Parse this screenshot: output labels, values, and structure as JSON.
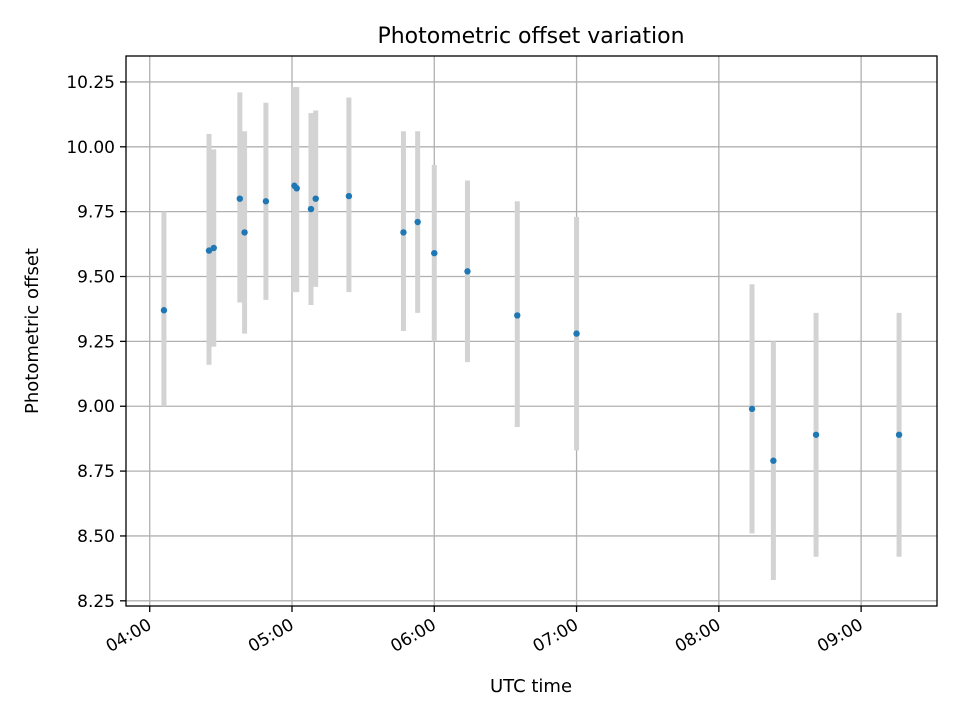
{
  "chart_data": {
    "type": "scatter",
    "title": "Photometric offset variation",
    "xlabel": "UTC time",
    "ylabel": "Photometric offset",
    "x_axis_kind": "time",
    "x_range": [
      "03:50",
      "09:32"
    ],
    "y_range": [
      8.23,
      10.35
    ],
    "grid": true,
    "x_ticks": [
      "04:00",
      "05:00",
      "06:00",
      "07:00",
      "08:00",
      "09:00"
    ],
    "y_ticks": [
      "8.25",
      "8.50",
      "8.75",
      "9.00",
      "9.25",
      "9.50",
      "9.75",
      "10.00",
      "10.25"
    ],
    "colors": {
      "point": "#1f77b4",
      "errorbar": "#d3d3d3",
      "grid": "#b0b0b0"
    },
    "points": [
      {
        "x": "04:06",
        "y": 9.37,
        "low": 9.0,
        "high": 9.75
      },
      {
        "x": "04:25",
        "y": 9.6,
        "low": 9.16,
        "high": 10.05
      },
      {
        "x": "04:27",
        "y": 9.61,
        "low": 9.23,
        "high": 9.99
      },
      {
        "x": "04:38",
        "y": 9.8,
        "low": 9.4,
        "high": 10.21
      },
      {
        "x": "04:40",
        "y": 9.67,
        "low": 9.28,
        "high": 10.06
      },
      {
        "x": "04:49",
        "y": 9.79,
        "low": 9.41,
        "high": 10.17
      },
      {
        "x": "05:01",
        "y": 9.85,
        "low": 9.44,
        "high": 10.23
      },
      {
        "x": "05:02",
        "y": 9.84,
        "low": 9.44,
        "high": 10.23
      },
      {
        "x": "05:08",
        "y": 9.76,
        "low": 9.39,
        "high": 10.13
      },
      {
        "x": "05:10",
        "y": 9.8,
        "low": 9.46,
        "high": 10.14
      },
      {
        "x": "05:24",
        "y": 9.81,
        "low": 9.44,
        "high": 10.19
      },
      {
        "x": "05:47",
        "y": 9.67,
        "low": 9.29,
        "high": 10.06
      },
      {
        "x": "05:53",
        "y": 9.71,
        "low": 9.36,
        "high": 10.06
      },
      {
        "x": "06:00",
        "y": 9.59,
        "low": 9.25,
        "high": 9.93
      },
      {
        "x": "06:14",
        "y": 9.52,
        "low": 9.17,
        "high": 9.87
      },
      {
        "x": "06:35",
        "y": 9.35,
        "low": 8.92,
        "high": 9.79
      },
      {
        "x": "07:00",
        "y": 9.28,
        "low": 8.83,
        "high": 9.73
      },
      {
        "x": "08:14",
        "y": 8.99,
        "low": 8.51,
        "high": 9.47
      },
      {
        "x": "08:23",
        "y": 8.79,
        "low": 8.33,
        "high": 9.25
      },
      {
        "x": "08:41",
        "y": 8.89,
        "low": 8.42,
        "high": 9.36
      },
      {
        "x": "09:16",
        "y": 8.89,
        "low": 8.42,
        "high": 9.36
      }
    ]
  }
}
